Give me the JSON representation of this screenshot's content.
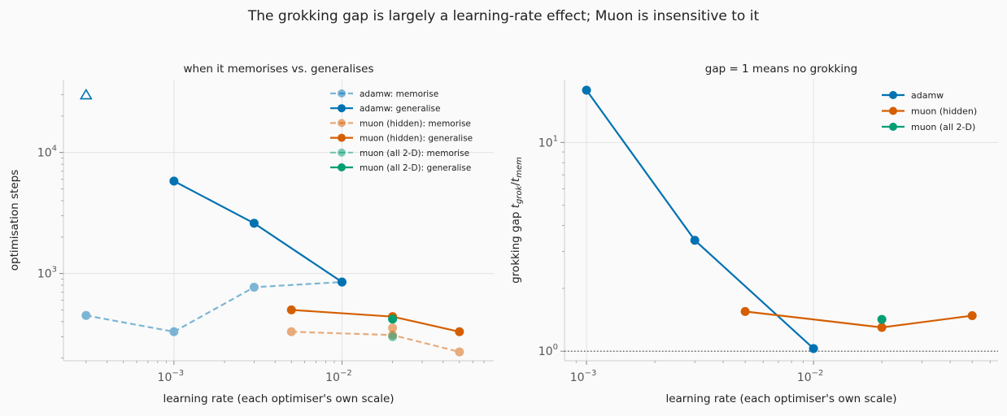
{
  "figure": {
    "suptitle": "The grokking gap is largely a learning-rate effect; Muon is insensitive to it"
  },
  "chart_data": [
    {
      "type": "line",
      "title": "when it memorises vs. generalises",
      "xlabel": "learning rate (each optimiser's own scale)",
      "ylabel": "optimisation steps",
      "xscale": "log",
      "yscale": "log",
      "xlim": [
        0.00022,
        0.08
      ],
      "ylim": [
        190,
        40000
      ],
      "xticks": [
        {
          "v": 0.001,
          "base": "10",
          "exp": "−3"
        },
        {
          "v": 0.01,
          "base": "10",
          "exp": "−2"
        }
      ],
      "yticks": [
        {
          "v": 1000,
          "base": "10",
          "exp": "3"
        },
        {
          "v": 10000,
          "base": "10",
          "exp": "4"
        }
      ],
      "grid": true,
      "legend": "top-right",
      "series": [
        {
          "name": "adamw: memorise",
          "color": "#0072B2",
          "dashed": true,
          "alpha": 0.5,
          "x": [
            0.0003,
            0.001,
            0.003,
            0.01
          ],
          "y": [
            450,
            330,
            770,
            850
          ]
        },
        {
          "name": "adamw: generalise",
          "color": "#0072B2",
          "dashed": false,
          "alpha": 1,
          "x": [
            0.001,
            0.003,
            0.01
          ],
          "y": [
            5800,
            2600,
            850
          ]
        },
        {
          "name": "muon (hidden): memorise",
          "color": "#D55E00",
          "dashed": true,
          "alpha": 0.5,
          "x": [
            0.005,
            0.02,
            0.05
          ],
          "y": [
            330,
            310,
            225
          ]
        },
        {
          "name": "muon (hidden): generalise",
          "color": "#D55E00",
          "dashed": false,
          "alpha": 1,
          "x": [
            0.005,
            0.02,
            0.05
          ],
          "y": [
            500,
            440,
            330
          ]
        },
        {
          "name": "muon (all 2-D): memorise",
          "color": "#009E73",
          "dashed": true,
          "alpha": 0.5,
          "x": [
            0.02
          ],
          "y": [
            300
          ]
        },
        {
          "name": "muon (all 2-D): generalise",
          "color": "#009E73",
          "dashed": false,
          "alpha": 1,
          "x": [
            0.02
          ],
          "y": [
            420
          ]
        }
      ],
      "extra_points": [
        {
          "x": 0.02,
          "y": 355,
          "color": "#D55E00",
          "alpha": 0.5
        }
      ],
      "annotations": [
        {
          "marker": "triangle-open",
          "color": "#0072B2",
          "x": 0.0003,
          "y": 30000
        }
      ]
    },
    {
      "type": "line",
      "title": "gap = 1 means no grokking",
      "xlabel": "learning rate (each optimiser's own scale)",
      "ylabel": "grokking gap  t_grok / t_mem",
      "xscale": "log",
      "yscale": "log",
      "xlim": [
        0.0008,
        0.065
      ],
      "ylim": [
        0.9,
        20
      ],
      "xticks": [
        {
          "v": 0.001,
          "base": "10",
          "exp": "−3"
        },
        {
          "v": 0.01,
          "base": "10",
          "exp": "−2"
        }
      ],
      "yticks": [
        {
          "v": 1,
          "base": "10",
          "exp": "0"
        },
        {
          "v": 10,
          "base": "10",
          "exp": "1"
        }
      ],
      "grid": true,
      "legend": "top-right",
      "reference_line": {
        "y": 1,
        "style": "dotted"
      },
      "series": [
        {
          "name": "adamw",
          "color": "#0072B2",
          "x": [
            0.001,
            0.003,
            0.01
          ],
          "y": [
            17.8,
            3.4,
            1.03
          ]
        },
        {
          "name": "muon (hidden)",
          "color": "#D55E00",
          "x": [
            0.005,
            0.02,
            0.05
          ],
          "y": [
            1.55,
            1.3,
            1.48
          ]
        },
        {
          "name": "muon (all 2-D)",
          "color": "#009E73",
          "x": [
            0.02
          ],
          "y": [
            1.42
          ]
        }
      ]
    }
  ]
}
